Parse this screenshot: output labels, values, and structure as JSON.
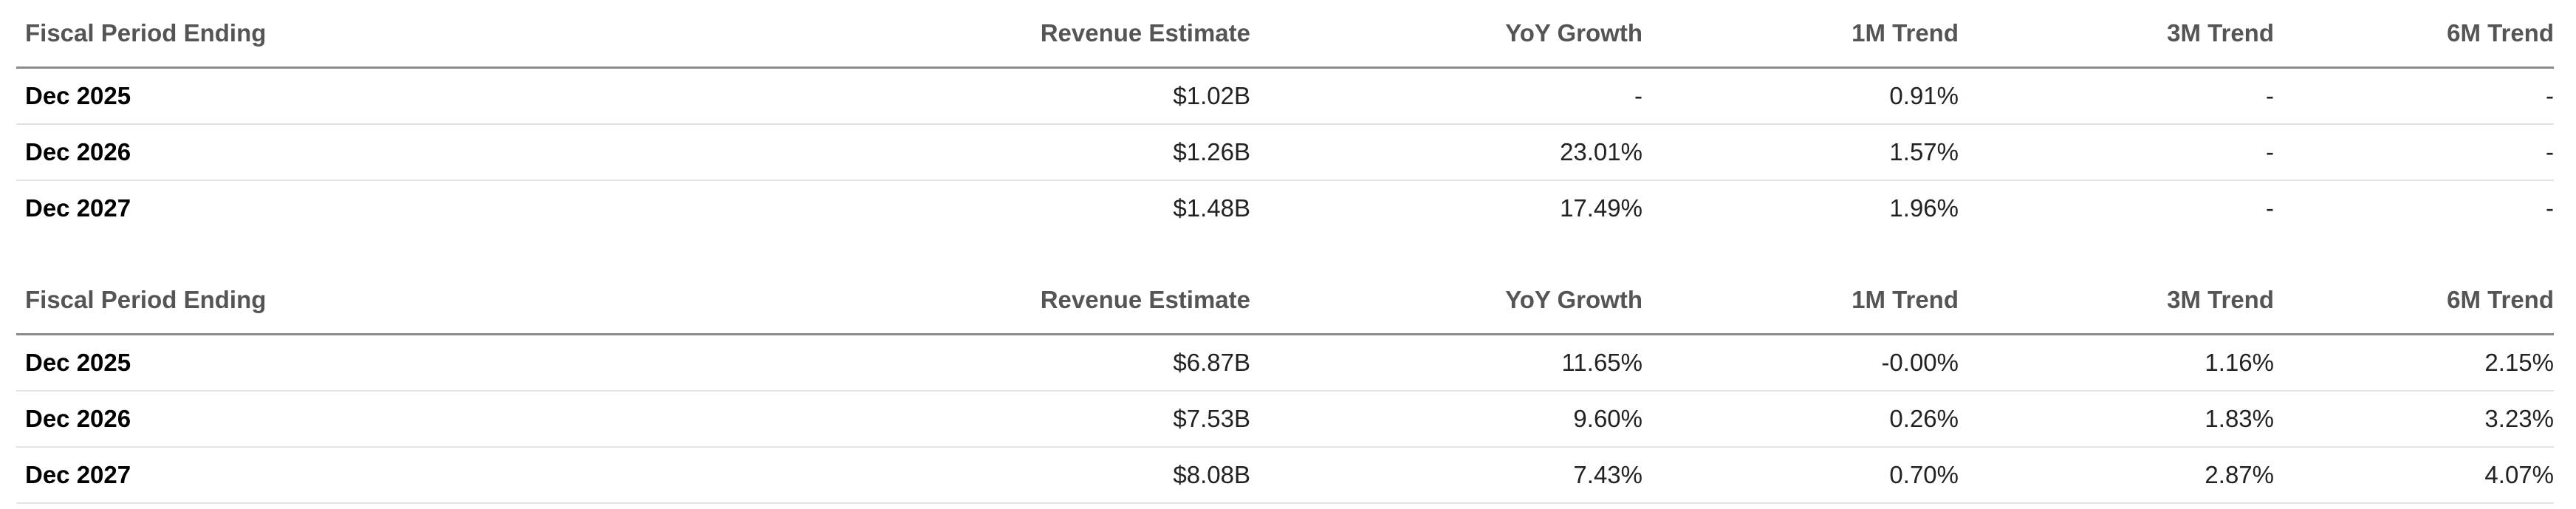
{
  "tables": [
    {
      "headers": [
        "Fiscal Period Ending",
        "Revenue Estimate",
        "YoY Growth",
        "1M Trend",
        "3M Trend",
        "6M Trend"
      ],
      "rows": [
        {
          "period": "Dec 2025",
          "revenue": "$1.02B",
          "yoy": "-",
          "m1": "0.91%",
          "m3": "-",
          "m6": "-"
        },
        {
          "period": "Dec 2026",
          "revenue": "$1.26B",
          "yoy": "23.01%",
          "m1": "1.57%",
          "m3": "-",
          "m6": "-"
        },
        {
          "period": "Dec 2027",
          "revenue": "$1.48B",
          "yoy": "17.49%",
          "m1": "1.96%",
          "m3": "-",
          "m6": "-"
        }
      ]
    },
    {
      "headers": [
        "Fiscal Period Ending",
        "Revenue Estimate",
        "YoY Growth",
        "1M Trend",
        "3M Trend",
        "6M Trend"
      ],
      "rows": [
        {
          "period": "Dec 2025",
          "revenue": "$6.87B",
          "yoy": "11.65%",
          "m1": "-0.00%",
          "m3": "1.16%",
          "m6": "2.15%"
        },
        {
          "period": "Dec 2026",
          "revenue": "$7.53B",
          "yoy": "9.60%",
          "m1": "0.26%",
          "m3": "1.83%",
          "m6": "3.23%"
        },
        {
          "period": "Dec 2027",
          "revenue": "$8.08B",
          "yoy": "7.43%",
          "m1": "0.70%",
          "m3": "2.87%",
          "m6": "4.07%"
        }
      ]
    }
  ],
  "colors": {
    "positive": "#2a8a4c",
    "negative": "#c0392b",
    "header_text": "#555555"
  }
}
